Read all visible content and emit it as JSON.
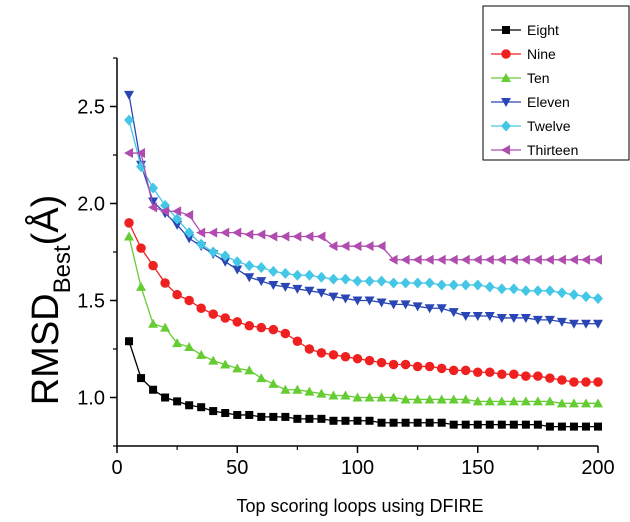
{
  "chart_data": {
    "type": "line",
    "title": "",
    "xlabel": "Top scoring loops using DFIRE",
    "ylabel": {
      "main": "RMSD",
      "subscript": "Best",
      "unit": "(Å)"
    },
    "xlim": [
      0,
      200
    ],
    "ylim": [
      0.75,
      2.75
    ],
    "xticks": [
      0,
      50,
      100,
      150,
      200
    ],
    "yticks": [
      1.0,
      1.5,
      2.0,
      2.5
    ],
    "ytick_labels": [
      "1.0",
      "1.5",
      "2.0",
      "2.5"
    ],
    "grid": false,
    "legend_position": "top-right",
    "x": [
      5,
      10,
      15,
      20,
      25,
      30,
      35,
      40,
      45,
      50,
      55,
      60,
      65,
      70,
      75,
      80,
      85,
      90,
      95,
      100,
      105,
      110,
      115,
      120,
      125,
      130,
      135,
      140,
      145,
      150,
      155,
      160,
      165,
      170,
      175,
      180,
      185,
      190,
      195,
      200
    ],
    "series": [
      {
        "name": "Eight",
        "color": "#000000",
        "marker": "square",
        "values": [
          1.29,
          1.1,
          1.04,
          1.0,
          0.98,
          0.96,
          0.95,
          0.93,
          0.92,
          0.91,
          0.91,
          0.9,
          0.9,
          0.9,
          0.89,
          0.89,
          0.89,
          0.88,
          0.88,
          0.88,
          0.88,
          0.87,
          0.87,
          0.87,
          0.87,
          0.87,
          0.87,
          0.86,
          0.86,
          0.86,
          0.86,
          0.86,
          0.86,
          0.86,
          0.86,
          0.85,
          0.85,
          0.85,
          0.85,
          0.85
        ]
      },
      {
        "name": "Nine",
        "color": "#ee2020",
        "marker": "circle",
        "values": [
          1.9,
          1.77,
          1.68,
          1.59,
          1.53,
          1.5,
          1.46,
          1.43,
          1.41,
          1.39,
          1.37,
          1.36,
          1.35,
          1.33,
          1.29,
          1.25,
          1.23,
          1.22,
          1.21,
          1.2,
          1.19,
          1.18,
          1.17,
          1.17,
          1.16,
          1.16,
          1.15,
          1.14,
          1.14,
          1.13,
          1.13,
          1.12,
          1.12,
          1.11,
          1.11,
          1.1,
          1.09,
          1.08,
          1.08,
          1.08
        ]
      },
      {
        "name": "Ten",
        "color": "#66cc33",
        "marker": "triangle-up",
        "values": [
          1.83,
          1.57,
          1.38,
          1.36,
          1.28,
          1.26,
          1.22,
          1.19,
          1.17,
          1.15,
          1.14,
          1.1,
          1.07,
          1.04,
          1.04,
          1.03,
          1.02,
          1.01,
          1.01,
          1.0,
          1.0,
          1.0,
          1.0,
          0.99,
          0.99,
          0.99,
          0.99,
          0.99,
          0.99,
          0.98,
          0.98,
          0.98,
          0.98,
          0.98,
          0.98,
          0.98,
          0.97,
          0.97,
          0.97,
          0.97
        ]
      },
      {
        "name": "Eleven",
        "color": "#2a46b4",
        "marker": "triangle-down",
        "values": [
          2.56,
          2.2,
          2.01,
          1.95,
          1.89,
          1.82,
          1.78,
          1.74,
          1.7,
          1.66,
          1.62,
          1.6,
          1.58,
          1.57,
          1.56,
          1.55,
          1.54,
          1.52,
          1.51,
          1.5,
          1.5,
          1.49,
          1.48,
          1.48,
          1.47,
          1.46,
          1.46,
          1.44,
          1.42,
          1.42,
          1.42,
          1.41,
          1.41,
          1.41,
          1.4,
          1.4,
          1.39,
          1.38,
          1.38,
          1.38
        ]
      },
      {
        "name": "Twelve",
        "color": "#44c6e6",
        "marker": "diamond",
        "values": [
          2.43,
          2.19,
          2.08,
          1.99,
          1.92,
          1.85,
          1.79,
          1.75,
          1.73,
          1.7,
          1.68,
          1.67,
          1.65,
          1.64,
          1.63,
          1.63,
          1.62,
          1.61,
          1.61,
          1.6,
          1.6,
          1.6,
          1.59,
          1.59,
          1.59,
          1.59,
          1.58,
          1.58,
          1.58,
          1.58,
          1.57,
          1.56,
          1.56,
          1.55,
          1.55,
          1.55,
          1.54,
          1.53,
          1.52,
          1.51
        ]
      },
      {
        "name": "Thirteen",
        "color": "#b04cb0",
        "marker": "triangle-left",
        "values": [
          2.26,
          2.26,
          1.98,
          1.96,
          1.96,
          1.94,
          1.85,
          1.85,
          1.85,
          1.85,
          1.84,
          1.84,
          1.83,
          1.83,
          1.83,
          1.83,
          1.83,
          1.78,
          1.78,
          1.78,
          1.78,
          1.78,
          1.71,
          1.71,
          1.71,
          1.71,
          1.71,
          1.71,
          1.71,
          1.71,
          1.71,
          1.71,
          1.71,
          1.71,
          1.71,
          1.71,
          1.71,
          1.71,
          1.71,
          1.71
        ]
      }
    ]
  }
}
